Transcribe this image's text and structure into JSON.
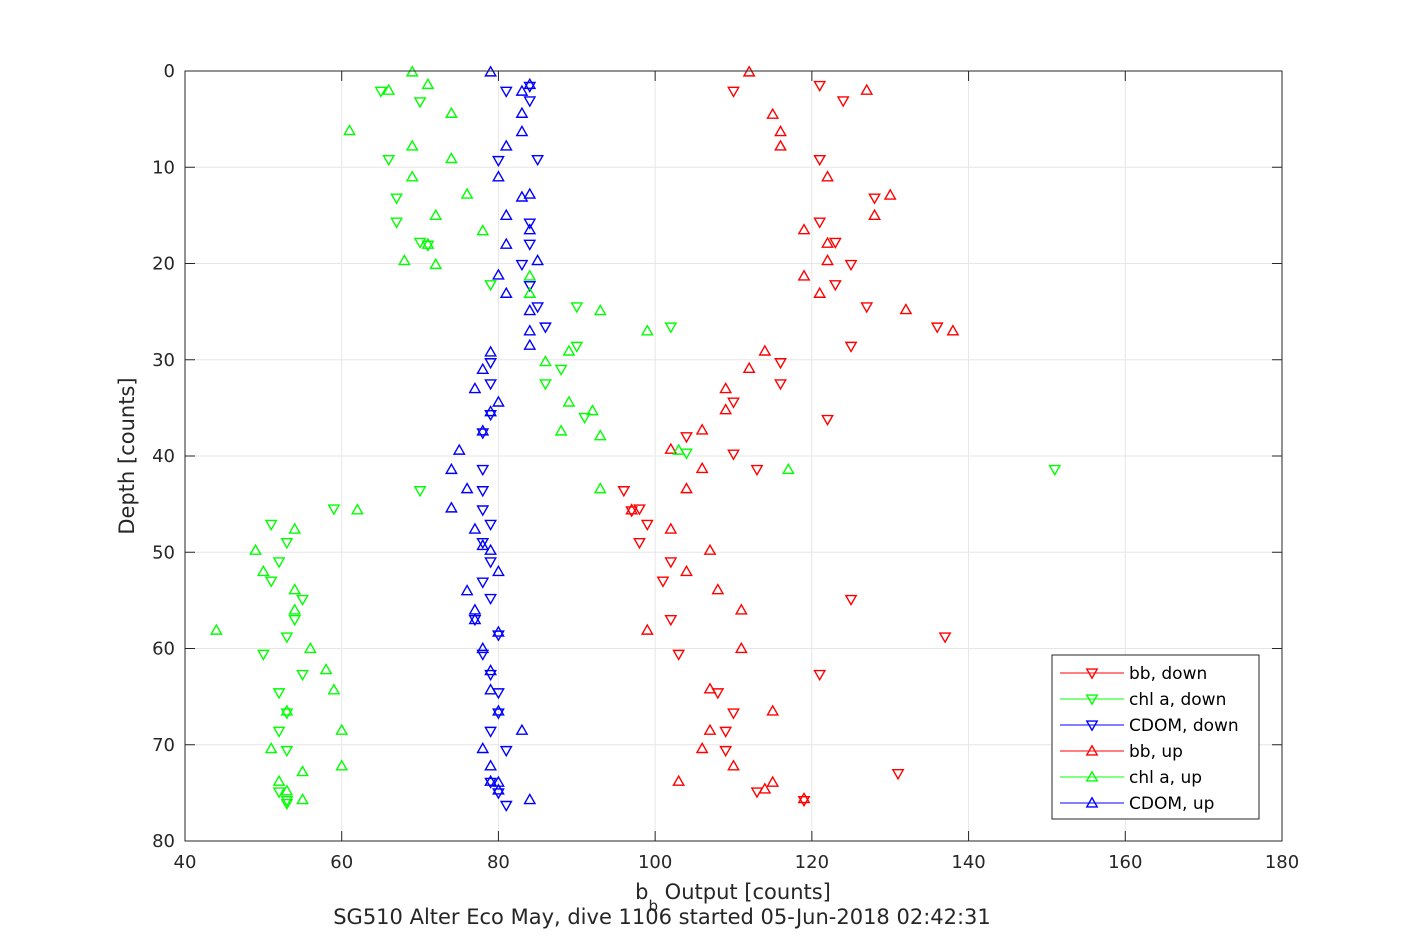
{
  "chart_data": {
    "type": "scatter",
    "xlabel_main": "b",
    "xlabel_sub": "b",
    "xlabel_rest": " Output [counts]",
    "ylabel": "Depth [counts]",
    "caption": "SG510 Alter Eco May, dive 1106 started 05-Jun-2018 02:42:31",
    "xlim": [
      40,
      180
    ],
    "ylim": [
      0,
      80
    ],
    "y_reversed": true,
    "grid": true,
    "legend_placement": "bottom-right",
    "x_ticks": [
      "40",
      "60",
      "80",
      "100",
      "120",
      "140",
      "160",
      "180"
    ],
    "y_ticks": [
      "0",
      "10",
      "20",
      "30",
      "40",
      "50",
      "60",
      "70",
      "80"
    ],
    "series": [
      {
        "name": "bb, down",
        "color": "#ff0000",
        "marker": "triangle-down",
        "points": [
          [
            121,
            1.5
          ],
          [
            110,
            2.1
          ],
          [
            124,
            3.1
          ],
          [
            121,
            9.2
          ],
          [
            128,
            13.2
          ],
          [
            121,
            15.7
          ],
          [
            123,
            17.8
          ],
          [
            125,
            20.1
          ],
          [
            123,
            22.2
          ],
          [
            127,
            24.5
          ],
          [
            136,
            26.6
          ],
          [
            125,
            28.6
          ],
          [
            116,
            30.3
          ],
          [
            116,
            32.5
          ],
          [
            110,
            34.4
          ],
          [
            122,
            36.2
          ],
          [
            104,
            38
          ],
          [
            110,
            39.8
          ],
          [
            113,
            41.4
          ],
          [
            96,
            43.6
          ],
          [
            98,
            45.5
          ],
          [
            97,
            45.7
          ],
          [
            99,
            47.1
          ],
          [
            98,
            49
          ],
          [
            102,
            51
          ],
          [
            101,
            53
          ],
          [
            125,
            54.9
          ],
          [
            102,
            57
          ],
          [
            137,
            58.8
          ],
          [
            103,
            60.6
          ],
          [
            121,
            62.7
          ],
          [
            108,
            64.6
          ],
          [
            110,
            66.7
          ],
          [
            109,
            68.6
          ],
          [
            109,
            70.6
          ],
          [
            131,
            73
          ],
          [
            113,
            74.9
          ],
          [
            119,
            75.8
          ]
        ]
      },
      {
        "name": "chl a, down",
        "color": "#00ff00",
        "marker": "triangle-down",
        "points": [
          [
            65,
            2.1
          ],
          [
            70,
            3.2
          ],
          [
            66,
            9.2
          ],
          [
            67,
            13.2
          ],
          [
            67,
            15.7
          ],
          [
            70,
            17.8
          ],
          [
            71,
            18.1
          ],
          [
            79,
            22.2
          ],
          [
            90,
            24.5
          ],
          [
            102,
            26.6
          ],
          [
            90,
            28.6
          ],
          [
            88,
            31
          ],
          [
            86,
            32.5
          ],
          [
            91,
            36
          ],
          [
            104,
            39.7
          ],
          [
            151,
            41.4
          ],
          [
            70,
            43.6
          ],
          [
            59,
            45.5
          ],
          [
            51,
            47.1
          ],
          [
            53,
            49
          ],
          [
            52,
            51
          ],
          [
            51,
            53
          ],
          [
            55,
            54.9
          ],
          [
            54,
            57
          ],
          [
            53,
            58.8
          ],
          [
            50,
            60.6
          ],
          [
            55,
            62.7
          ],
          [
            52,
            64.6
          ],
          [
            53,
            66.7
          ],
          [
            52,
            68.6
          ],
          [
            53,
            70.6
          ],
          [
            52,
            74.9
          ],
          [
            53,
            75.8
          ],
          [
            53,
            76.1
          ]
        ]
      },
      {
        "name": "CDOM, down",
        "color": "#0000ff",
        "marker": "triangle-down",
        "points": [
          [
            84,
            1.6
          ],
          [
            81,
            2.1
          ],
          [
            84,
            3.1
          ],
          [
            85,
            9.2
          ],
          [
            80,
            9.3
          ],
          [
            84,
            15.8
          ],
          [
            84,
            18
          ],
          [
            83,
            20.1
          ],
          [
            84,
            22.3
          ],
          [
            85,
            24.5
          ],
          [
            86,
            26.6
          ],
          [
            79,
            30.3
          ],
          [
            79,
            32.5
          ],
          [
            79,
            35.7
          ],
          [
            78,
            37.6
          ],
          [
            78,
            41.4
          ],
          [
            78,
            43.6
          ],
          [
            78,
            45.6
          ],
          [
            79,
            47.1
          ],
          [
            78,
            49
          ],
          [
            79,
            51
          ],
          [
            78,
            53.1
          ],
          [
            79,
            54.8
          ],
          [
            77,
            57
          ],
          [
            80,
            58.6
          ],
          [
            78,
            60.6
          ],
          [
            79,
            62.7
          ],
          [
            80,
            64.6
          ],
          [
            80,
            66.7
          ],
          [
            79,
            68.6
          ],
          [
            81,
            70.6
          ],
          [
            79,
            73.9
          ],
          [
            80,
            75
          ],
          [
            81,
            76.3
          ]
        ]
      },
      {
        "name": "bb, up",
        "color": "#ff0000",
        "marker": "triangle-up",
        "points": [
          [
            112,
            0.1
          ],
          [
            127,
            2
          ],
          [
            115,
            4.5
          ],
          [
            116,
            6.3
          ],
          [
            116,
            7.8
          ],
          [
            122,
            11
          ],
          [
            130,
            12.9
          ],
          [
            128,
            15
          ],
          [
            119,
            16.5
          ],
          [
            122,
            17.9
          ],
          [
            122,
            19.7
          ],
          [
            119,
            21.3
          ],
          [
            121,
            23.1
          ],
          [
            132,
            24.8
          ],
          [
            138,
            27
          ],
          [
            114,
            29.1
          ],
          [
            112,
            30.9
          ],
          [
            109,
            33
          ],
          [
            109,
            35.2
          ],
          [
            106,
            37.3
          ],
          [
            102,
            39.3
          ],
          [
            106,
            41.3
          ],
          [
            104,
            43.4
          ],
          [
            97,
            45.6
          ],
          [
            102,
            47.6
          ],
          [
            107,
            49.8
          ],
          [
            104,
            52
          ],
          [
            108,
            53.9
          ],
          [
            111,
            56
          ],
          [
            99,
            58.1
          ],
          [
            111,
            60
          ],
          [
            107,
            64.2
          ],
          [
            115,
            66.5
          ],
          [
            107,
            68.5
          ],
          [
            106,
            70.4
          ],
          [
            110,
            72.2
          ],
          [
            103,
            73.8
          ],
          [
            115,
            73.9
          ],
          [
            114,
            74.6
          ],
          [
            119,
            75.6
          ]
        ]
      },
      {
        "name": "chl a, up",
        "color": "#00ff00",
        "marker": "triangle-up",
        "points": [
          [
            69,
            0.1
          ],
          [
            71,
            1.4
          ],
          [
            66,
            2
          ],
          [
            74,
            4.4
          ],
          [
            61,
            6.2
          ],
          [
            69,
            7.8
          ],
          [
            74,
            9.1
          ],
          [
            69,
            11
          ],
          [
            76,
            12.8
          ],
          [
            72,
            15
          ],
          [
            78,
            16.6
          ],
          [
            71,
            18
          ],
          [
            68,
            19.7
          ],
          [
            72,
            20.1
          ],
          [
            84,
            21.3
          ],
          [
            84,
            23.1
          ],
          [
            93,
            24.9
          ],
          [
            99,
            27
          ],
          [
            89,
            29.1
          ],
          [
            86,
            30.2
          ],
          [
            89,
            34.4
          ],
          [
            92,
            35.3
          ],
          [
            88,
            37.4
          ],
          [
            93,
            37.9
          ],
          [
            103,
            39.4
          ],
          [
            117,
            41.4
          ],
          [
            93,
            43.4
          ],
          [
            62,
            45.6
          ],
          [
            54,
            47.6
          ],
          [
            49,
            49.8
          ],
          [
            50,
            52
          ],
          [
            54,
            53.9
          ],
          [
            54,
            56
          ],
          [
            44,
            58.1
          ],
          [
            56,
            60
          ],
          [
            58,
            62.2
          ],
          [
            59,
            64.3
          ],
          [
            53,
            66.5
          ],
          [
            60,
            68.5
          ],
          [
            51,
            70.4
          ],
          [
            60,
            72.2
          ],
          [
            55,
            72.8
          ],
          [
            52,
            73.8
          ],
          [
            53,
            74.8
          ],
          [
            55,
            75.7
          ]
        ]
      },
      {
        "name": "CDOM, up",
        "color": "#0000ff",
        "marker": "triangle-up",
        "points": [
          [
            79,
            0.1
          ],
          [
            84,
            1.4
          ],
          [
            83,
            2.1
          ],
          [
            83,
            4.4
          ],
          [
            83,
            6.3
          ],
          [
            81,
            7.8
          ],
          [
            80,
            11
          ],
          [
            84,
            12.8
          ],
          [
            83,
            13.1
          ],
          [
            81,
            15
          ],
          [
            84,
            16.5
          ],
          [
            81,
            18
          ],
          [
            85,
            19.7
          ],
          [
            80,
            21.2
          ],
          [
            81,
            23.1
          ],
          [
            84,
            24.9
          ],
          [
            84,
            27
          ],
          [
            84,
            28.5
          ],
          [
            79,
            29.2
          ],
          [
            78,
            31
          ],
          [
            77,
            33
          ],
          [
            80,
            34.4
          ],
          [
            79,
            35.4
          ],
          [
            78,
            37.4
          ],
          [
            75,
            39.4
          ],
          [
            74,
            41.4
          ],
          [
            76,
            43.4
          ],
          [
            74,
            45.4
          ],
          [
            77,
            47.6
          ],
          [
            78,
            49.3
          ],
          [
            79,
            49.8
          ],
          [
            80,
            52
          ],
          [
            76,
            54
          ],
          [
            77,
            56
          ],
          [
            77,
            57
          ],
          [
            80,
            58.3
          ],
          [
            78,
            60
          ],
          [
            79,
            62.3
          ],
          [
            79,
            64.3
          ],
          [
            80,
            66.5
          ],
          [
            83,
            68.5
          ],
          [
            78,
            70.4
          ],
          [
            79,
            72.2
          ],
          [
            79,
            73.8
          ],
          [
            80,
            73.9
          ],
          [
            80,
            74.7
          ],
          [
            84,
            75.7
          ]
        ]
      }
    ]
  }
}
